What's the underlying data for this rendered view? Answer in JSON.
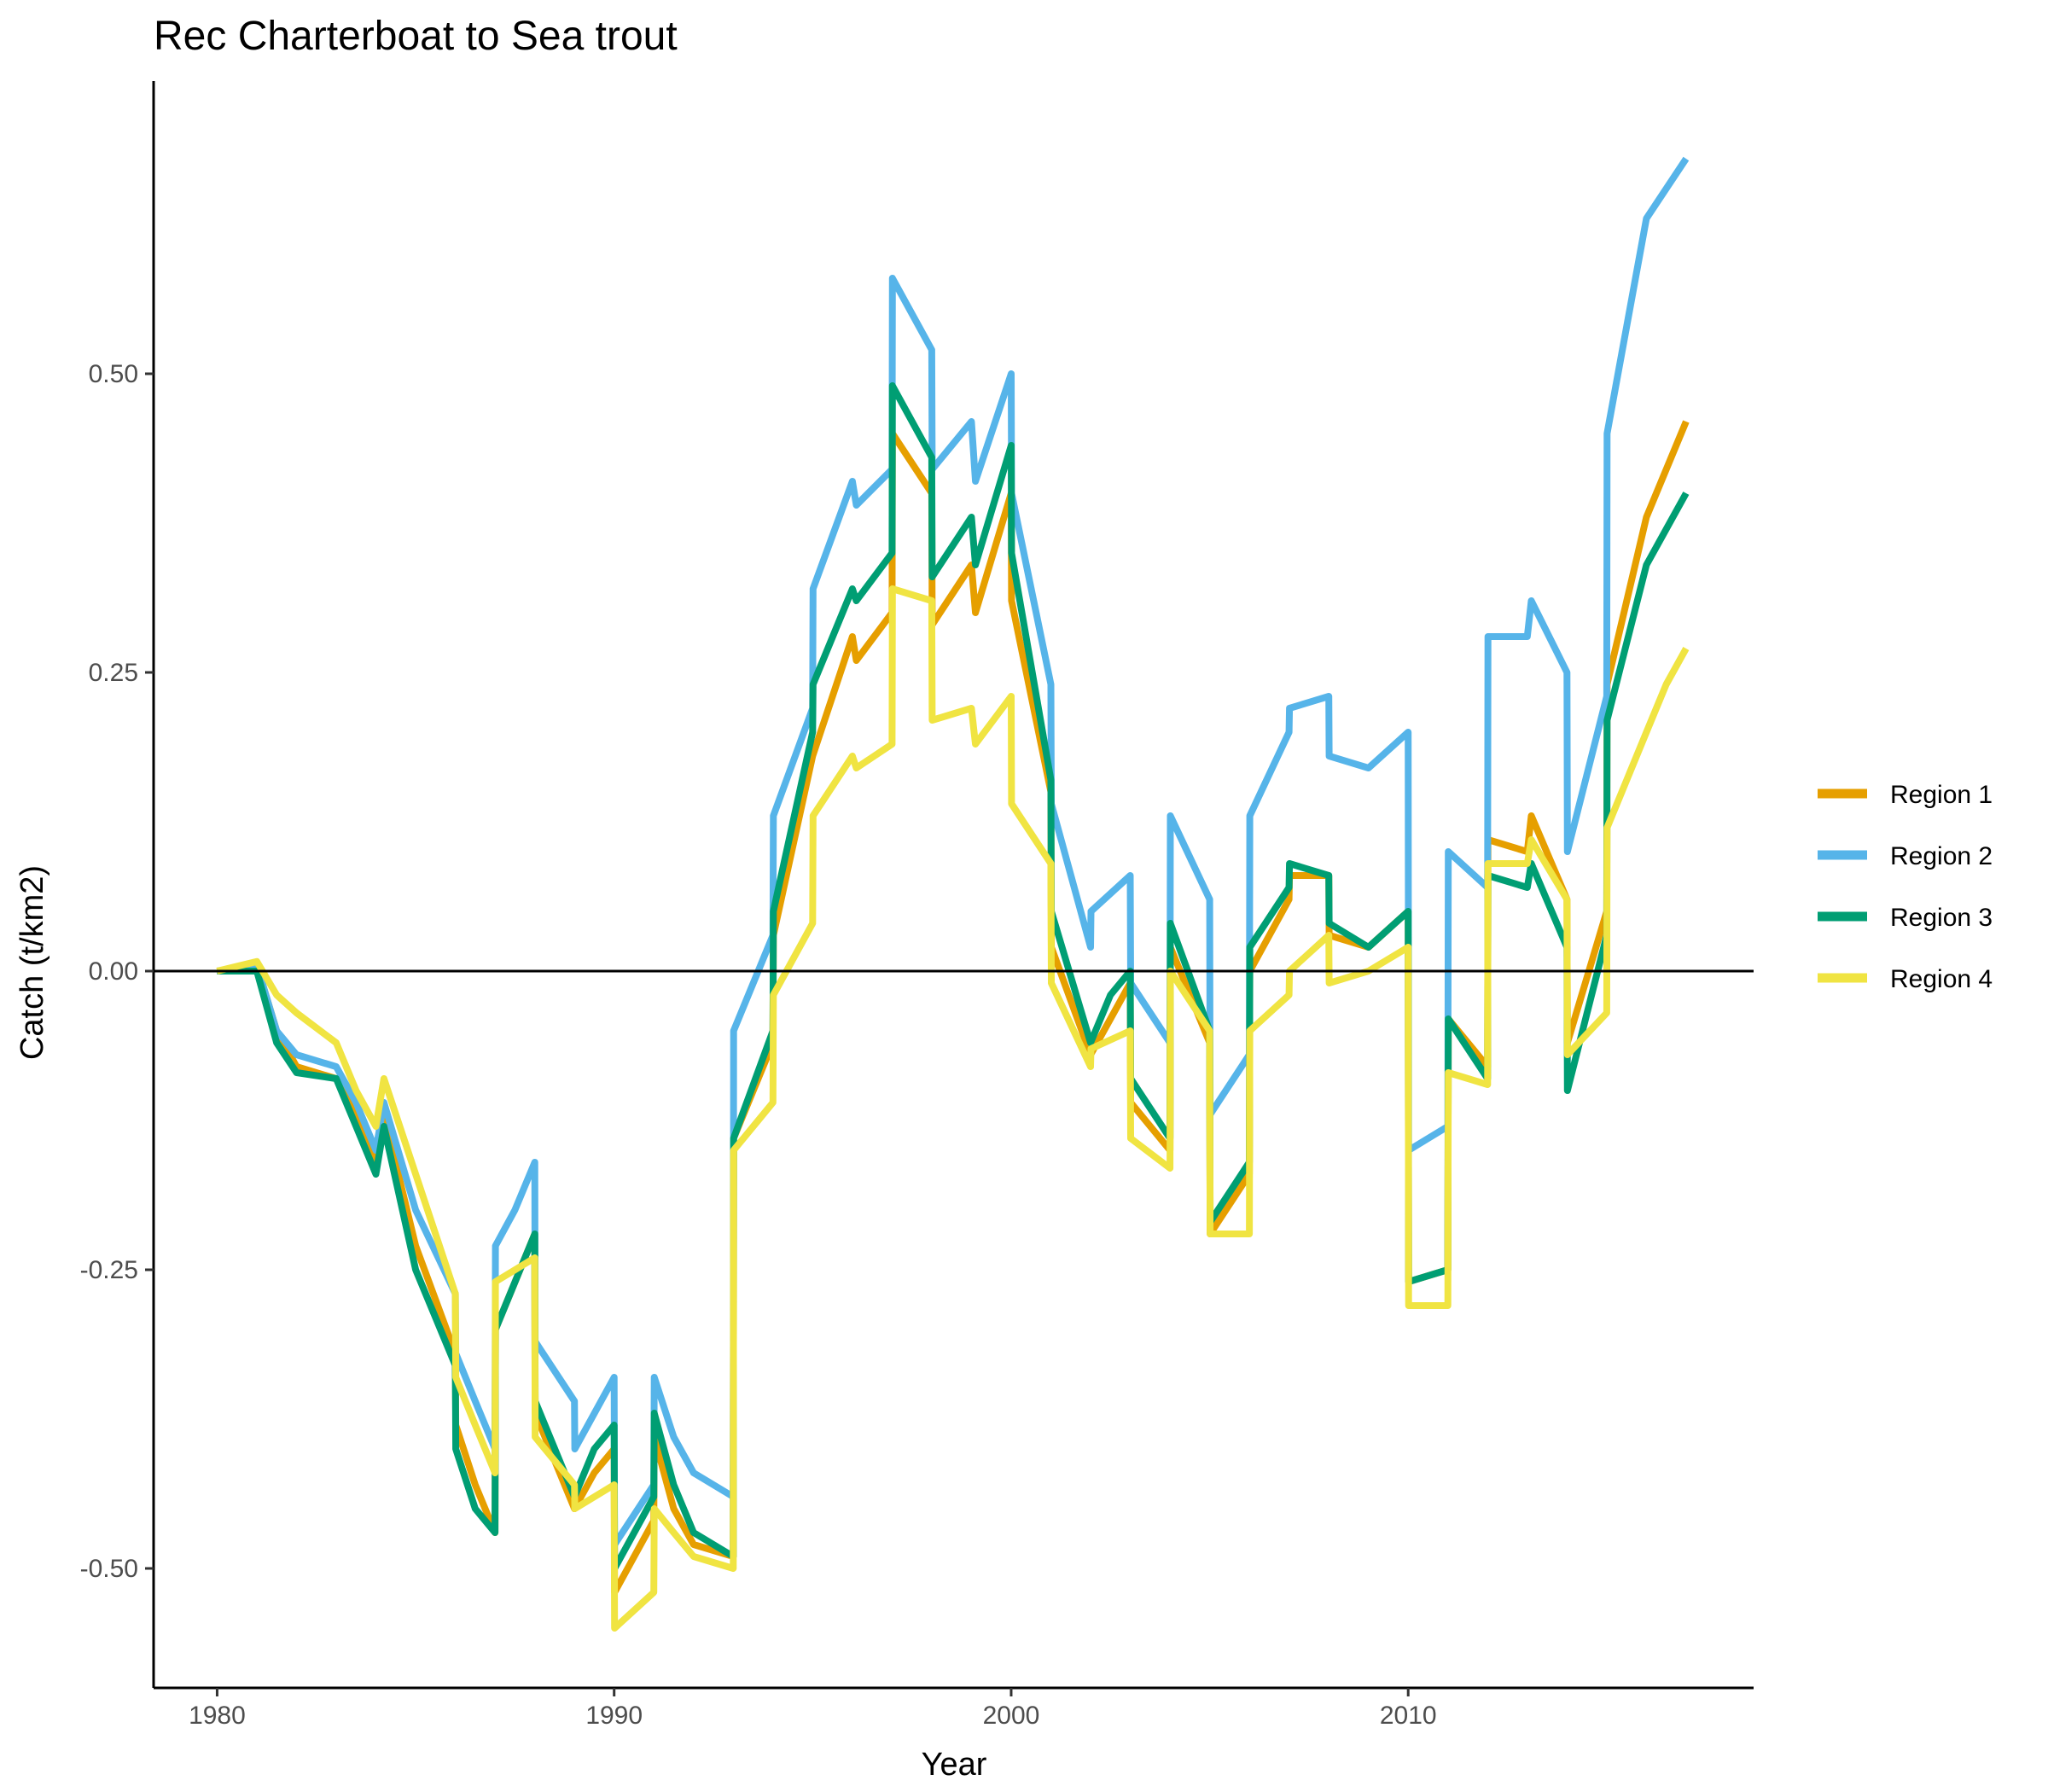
{
  "chart_data": {
    "type": "line",
    "title": "Rec Charterboat to Sea trout",
    "xlabel": "Year",
    "ylabel": "Catch (t/km2)",
    "xlim": [
      1978.4,
      2018.7
    ],
    "ylim": [
      -0.6,
      0.745
    ],
    "xticks": [
      1980,
      1990,
      2000,
      2010
    ],
    "xtick_labels": [
      "1980",
      "1990",
      "2000",
      "2010"
    ],
    "yticks": [
      -0.5,
      -0.25,
      0.0,
      0.25,
      0.5
    ],
    "ytick_labels": [
      "-0.50",
      "-0.25",
      "0.00",
      "0.25",
      "0.50"
    ],
    "reference_line_y": 0,
    "grid": false,
    "legend_position": "right",
    "series": [
      {
        "name": "Region 1",
        "color": "#E69F00",
        "points": [
          [
            1980,
            0
          ],
          [
            1981,
            0.005
          ],
          [
            1981.5,
            -0.05
          ],
          [
            1982,
            -0.08
          ],
          [
            1983,
            -0.09
          ],
          [
            1983.5,
            -0.12
          ],
          [
            1984,
            -0.16
          ],
          [
            1984.2,
            -0.12
          ],
          [
            1985,
            -0.23
          ],
          [
            1986,
            -0.32
          ],
          [
            1986.01,
            -0.38
          ],
          [
            1986.5,
            -0.43
          ],
          [
            1987,
            -0.47
          ],
          [
            1987.01,
            -0.3
          ],
          [
            1988,
            -0.22
          ],
          [
            1988.01,
            -0.37
          ],
          [
            1989,
            -0.45
          ],
          [
            1989.5,
            -0.42
          ],
          [
            1990,
            -0.4
          ],
          [
            1990.01,
            -0.52
          ],
          [
            1991,
            -0.46
          ],
          [
            1991.01,
            -0.39
          ],
          [
            1991.5,
            -0.45
          ],
          [
            1992,
            -0.48
          ],
          [
            1993,
            -0.49
          ],
          [
            1993.01,
            -0.14
          ],
          [
            1994,
            -0.06
          ],
          [
            1994.01,
            0.03
          ],
          [
            1995,
            0.18
          ],
          [
            1996,
            0.28
          ],
          [
            1996.1,
            0.26
          ],
          [
            1997,
            0.3
          ],
          [
            1997.01,
            0.45
          ],
          [
            1998,
            0.4
          ],
          [
            1998.01,
            0.29
          ],
          [
            1999,
            0.34
          ],
          [
            1999.1,
            0.3
          ],
          [
            2000,
            0.4
          ],
          [
            2000.01,
            0.31
          ],
          [
            2001,
            0.15
          ],
          [
            2001.01,
            0.02
          ],
          [
            2002,
            -0.07
          ],
          [
            2002.5,
            -0.04
          ],
          [
            2003,
            -0.01
          ],
          [
            2003.01,
            -0.11
          ],
          [
            2004,
            -0.15
          ],
          [
            2004.01,
            0.02
          ],
          [
            2005,
            -0.06
          ],
          [
            2005.01,
            -0.22
          ],
          [
            2006,
            -0.17
          ],
          [
            2006.01,
            0
          ],
          [
            2007,
            0.06
          ],
          [
            2007.01,
            0.08
          ],
          [
            2008,
            0.08
          ],
          [
            2008.01,
            0.03
          ],
          [
            2009,
            0.02
          ],
          [
            2010,
            0.05
          ],
          [
            2010.01,
            -0.26
          ],
          [
            2011,
            -0.25
          ],
          [
            2011.01,
            -0.04
          ],
          [
            2012,
            -0.08
          ],
          [
            2012.01,
            0.11
          ],
          [
            2013,
            0.1
          ],
          [
            2013.1,
            0.13
          ],
          [
            2014,
            0.06
          ],
          [
            2014.01,
            -0.06
          ],
          [
            2015,
            0.05
          ],
          [
            2015.01,
            0.24
          ],
          [
            2016,
            0.38
          ],
          [
            2017,
            0.46
          ]
        ]
      },
      {
        "name": "Region 2",
        "color": "#56B4E9",
        "points": [
          [
            1980,
            0
          ],
          [
            1981,
            0.005
          ],
          [
            1981.5,
            -0.05
          ],
          [
            1982,
            -0.07
          ],
          [
            1983,
            -0.08
          ],
          [
            1983.5,
            -0.11
          ],
          [
            1984,
            -0.15
          ],
          [
            1984.2,
            -0.11
          ],
          [
            1985,
            -0.2
          ],
          [
            1986,
            -0.27
          ],
          [
            1986.01,
            -0.32
          ],
          [
            1986.5,
            -0.36
          ],
          [
            1987,
            -0.4
          ],
          [
            1987.01,
            -0.23
          ],
          [
            1987.5,
            -0.2
          ],
          [
            1988,
            -0.16
          ],
          [
            1988.01,
            -0.31
          ],
          [
            1989,
            -0.36
          ],
          [
            1989.01,
            -0.4
          ],
          [
            1990,
            -0.34
          ],
          [
            1990.01,
            -0.48
          ],
          [
            1991,
            -0.43
          ],
          [
            1991.01,
            -0.34
          ],
          [
            1991.5,
            -0.39
          ],
          [
            1992,
            -0.42
          ],
          [
            1993,
            -0.44
          ],
          [
            1993.01,
            -0.05
          ],
          [
            1994,
            0.03
          ],
          [
            1994.01,
            0.13
          ],
          [
            1995,
            0.22
          ],
          [
            1995.01,
            0.32
          ],
          [
            1996,
            0.41
          ],
          [
            1996.1,
            0.39
          ],
          [
            1997,
            0.42
          ],
          [
            1997.01,
            0.58
          ],
          [
            1998,
            0.52
          ],
          [
            1998.01,
            0.42
          ],
          [
            1999,
            0.46
          ],
          [
            1999.1,
            0.41
          ],
          [
            2000,
            0.5
          ],
          [
            2000.01,
            0.4
          ],
          [
            2001,
            0.24
          ],
          [
            2001.01,
            0.14
          ],
          [
            2002,
            0.02
          ],
          [
            2002.01,
            0.05
          ],
          [
            2003,
            0.08
          ],
          [
            2003.01,
            -0.01
          ],
          [
            2004,
            -0.06
          ],
          [
            2004.01,
            0.13
          ],
          [
            2005,
            0.06
          ],
          [
            2005.01,
            -0.12
          ],
          [
            2006,
            -0.07
          ],
          [
            2006.01,
            0.13
          ],
          [
            2007,
            0.2
          ],
          [
            2007.01,
            0.22
          ],
          [
            2008,
            0.23
          ],
          [
            2008.01,
            0.18
          ],
          [
            2009,
            0.17
          ],
          [
            2010,
            0.2
          ],
          [
            2010.01,
            -0.15
          ],
          [
            2011,
            -0.13
          ],
          [
            2011.01,
            0.1
          ],
          [
            2012,
            0.07
          ],
          [
            2012.01,
            0.28
          ],
          [
            2013,
            0.28
          ],
          [
            2013.1,
            0.31
          ],
          [
            2014,
            0.25
          ],
          [
            2014.01,
            0.1
          ],
          [
            2015,
            0.23
          ],
          [
            2015.01,
            0.45
          ],
          [
            2016,
            0.63
          ],
          [
            2017,
            0.68
          ]
        ]
      },
      {
        "name": "Region 3",
        "color": "#009E73",
        "points": [
          [
            1980,
            0
          ],
          [
            1981,
            0
          ],
          [
            1981.5,
            -0.06
          ],
          [
            1982,
            -0.085
          ],
          [
            1983,
            -0.09
          ],
          [
            1983.5,
            -0.13
          ],
          [
            1984,
            -0.17
          ],
          [
            1984.2,
            -0.13
          ],
          [
            1985,
            -0.25
          ],
          [
            1986,
            -0.33
          ],
          [
            1986.01,
            -0.4
          ],
          [
            1986.5,
            -0.45
          ],
          [
            1987,
            -0.47
          ],
          [
            1987.01,
            -0.3
          ],
          [
            1988,
            -0.22
          ],
          [
            1988.01,
            -0.36
          ],
          [
            1989,
            -0.44
          ],
          [
            1989.5,
            -0.4
          ],
          [
            1990,
            -0.38
          ],
          [
            1990.01,
            -0.5
          ],
          [
            1991,
            -0.44
          ],
          [
            1991.01,
            -0.37
          ],
          [
            1991.5,
            -0.43
          ],
          [
            1992,
            -0.47
          ],
          [
            1993,
            -0.49
          ],
          [
            1993.01,
            -0.14
          ],
          [
            1994,
            -0.05
          ],
          [
            1994.01,
            0.05
          ],
          [
            1995,
            0.2
          ],
          [
            1995.01,
            0.24
          ],
          [
            1996,
            0.32
          ],
          [
            1996.1,
            0.31
          ],
          [
            1997,
            0.35
          ],
          [
            1997.01,
            0.49
          ],
          [
            1998,
            0.43
          ],
          [
            1998.01,
            0.33
          ],
          [
            1999,
            0.38
          ],
          [
            1999.1,
            0.34
          ],
          [
            2000,
            0.44
          ],
          [
            2000.01,
            0.35
          ],
          [
            2001,
            0.16
          ],
          [
            2001.01,
            0.05
          ],
          [
            2002,
            -0.06
          ],
          [
            2002.5,
            -0.02
          ],
          [
            2003,
            0
          ],
          [
            2003.01,
            -0.09
          ],
          [
            2004,
            -0.14
          ],
          [
            2004.01,
            0.04
          ],
          [
            2005,
            -0.05
          ],
          [
            2005.01,
            -0.21
          ],
          [
            2006,
            -0.16
          ],
          [
            2006.01,
            0.02
          ],
          [
            2007,
            0.07
          ],
          [
            2007.01,
            0.09
          ],
          [
            2008,
            0.08
          ],
          [
            2008.01,
            0.04
          ],
          [
            2009,
            0.02
          ],
          [
            2010,
            0.05
          ],
          [
            2010.01,
            -0.26
          ],
          [
            2011,
            -0.25
          ],
          [
            2011.01,
            -0.04
          ],
          [
            2012,
            -0.09
          ],
          [
            2012.01,
            0.08
          ],
          [
            2013,
            0.07
          ],
          [
            2013.1,
            0.09
          ],
          [
            2014,
            0.02
          ],
          [
            2014.01,
            -0.1
          ],
          [
            2015,
            0.03
          ],
          [
            2015.01,
            0.21
          ],
          [
            2016,
            0.34
          ],
          [
            2017,
            0.4
          ]
        ]
      },
      {
        "name": "Region 4",
        "color": "#F0E442",
        "points": [
          [
            1980,
            0
          ],
          [
            1981,
            0.008
          ],
          [
            1981.5,
            -0.02
          ],
          [
            1982,
            -0.035
          ],
          [
            1983,
            -0.06
          ],
          [
            1983.5,
            -0.1
          ],
          [
            1984,
            -0.13
          ],
          [
            1984.2,
            -0.09
          ],
          [
            1985,
            -0.17
          ],
          [
            1986,
            -0.27
          ],
          [
            1986.01,
            -0.34
          ],
          [
            1986.5,
            -0.38
          ],
          [
            1987,
            -0.42
          ],
          [
            1987.01,
            -0.26
          ],
          [
            1988,
            -0.24
          ],
          [
            1988.01,
            -0.39
          ],
          [
            1989,
            -0.43
          ],
          [
            1989.01,
            -0.45
          ],
          [
            1990,
            -0.43
          ],
          [
            1990.01,
            -0.55
          ],
          [
            1991,
            -0.52
          ],
          [
            1991.01,
            -0.45
          ],
          [
            1991.5,
            -0.47
          ],
          [
            1992,
            -0.49
          ],
          [
            1993,
            -0.5
          ],
          [
            1993.01,
            -0.15
          ],
          [
            1994,
            -0.11
          ],
          [
            1994.01,
            -0.02
          ],
          [
            1995,
            0.04
          ],
          [
            1995.01,
            0.13
          ],
          [
            1996,
            0.18
          ],
          [
            1996.1,
            0.17
          ],
          [
            1997,
            0.19
          ],
          [
            1997.01,
            0.32
          ],
          [
            1998,
            0.31
          ],
          [
            1998.01,
            0.21
          ],
          [
            1999,
            0.22
          ],
          [
            1999.1,
            0.19
          ],
          [
            2000,
            0.23
          ],
          [
            2000.01,
            0.14
          ],
          [
            2001,
            0.09
          ],
          [
            2001.01,
            -0.01
          ],
          [
            2002,
            -0.08
          ],
          [
            2002.01,
            -0.065
          ],
          [
            2003,
            -0.05
          ],
          [
            2003.01,
            -0.14
          ],
          [
            2004,
            -0.165
          ],
          [
            2004.01,
            0
          ],
          [
            2005,
            -0.05
          ],
          [
            2005.01,
            -0.22
          ],
          [
            2006,
            -0.22
          ],
          [
            2006.01,
            -0.05
          ],
          [
            2007,
            -0.02
          ],
          [
            2007.01,
            0
          ],
          [
            2008,
            0.03
          ],
          [
            2008.01,
            -0.01
          ],
          [
            2009,
            0
          ],
          [
            2010,
            0.02
          ],
          [
            2010.01,
            -0.28
          ],
          [
            2011,
            -0.28
          ],
          [
            2011.01,
            -0.085
          ],
          [
            2012,
            -0.095
          ],
          [
            2012.01,
            0.09
          ],
          [
            2013,
            0.09
          ],
          [
            2013.1,
            0.11
          ],
          [
            2014,
            0.06
          ],
          [
            2014.01,
            -0.07
          ],
          [
            2015,
            -0.035
          ],
          [
            2015.01,
            0.12
          ],
          [
            2016,
            0.2
          ],
          [
            2016.5,
            0.24
          ],
          [
            2017,
            0.27
          ]
        ]
      }
    ]
  }
}
